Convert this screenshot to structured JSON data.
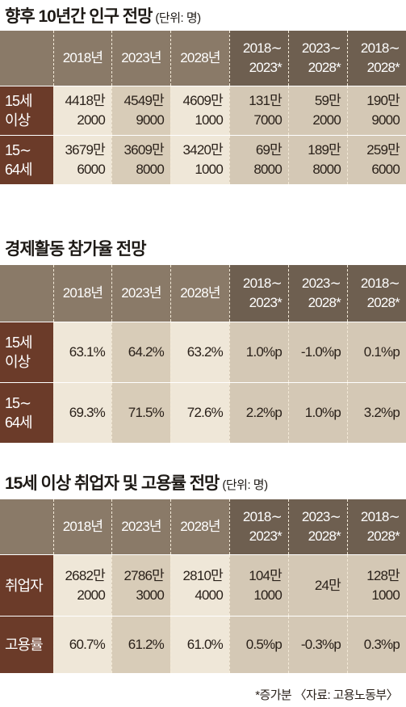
{
  "section1": {
    "title": "향후 10년간 인구 전망",
    "unit": "(단위: 명)",
    "headers": [
      {
        "l1": "",
        "l2": ""
      },
      {
        "l1": "2018년",
        "l2": ""
      },
      {
        "l1": "2023년",
        "l2": ""
      },
      {
        "l1": "2028년",
        "l2": ""
      },
      {
        "l1": "2018∼",
        "l2": "2023*"
      },
      {
        "l1": "2023∼",
        "l2": "2028*"
      },
      {
        "l1": "2018∼",
        "l2": "2028*"
      }
    ],
    "rows": [
      {
        "label1": "15세",
        "label2": "이상",
        "cells": [
          [
            "4418만",
            "2000"
          ],
          [
            "4549만",
            "9000"
          ],
          [
            "4609만",
            "1000"
          ],
          [
            "131만",
            "7000"
          ],
          [
            "59만",
            "2000"
          ],
          [
            "190만",
            "9000"
          ]
        ]
      },
      {
        "label1": "15∼",
        "label2": "64세",
        "cells": [
          [
            "3679만",
            "6000"
          ],
          [
            "3609만",
            "8000"
          ],
          [
            "3420만",
            "1000"
          ],
          [
            "69만",
            "8000"
          ],
          [
            "189만",
            "8000"
          ],
          [
            "259만",
            "6000"
          ]
        ]
      }
    ]
  },
  "section2": {
    "title": "경제활동 참가율 전망",
    "unit": "",
    "headers": [
      {
        "l1": "",
        "l2": ""
      },
      {
        "l1": "2018년",
        "l2": ""
      },
      {
        "l1": "2023년",
        "l2": ""
      },
      {
        "l1": "2028년",
        "l2": ""
      },
      {
        "l1": "2018∼",
        "l2": "2023*"
      },
      {
        "l1": "2023∼",
        "l2": "2028*"
      },
      {
        "l1": "2018∼",
        "l2": "2028*"
      }
    ],
    "rows": [
      {
        "label1": "15세",
        "label2": "이상",
        "cells": [
          [
            "63.1%",
            ""
          ],
          [
            "64.2%",
            ""
          ],
          [
            "63.2%",
            ""
          ],
          [
            "1.0%p",
            ""
          ],
          [
            "-1.0%p",
            ""
          ],
          [
            "0.1%p",
            ""
          ]
        ]
      },
      {
        "label1": "15∼",
        "label2": "64세",
        "cells": [
          [
            "69.3%",
            ""
          ],
          [
            "71.5%",
            ""
          ],
          [
            "72.6%",
            ""
          ],
          [
            "2.2%p",
            ""
          ],
          [
            "1.0%p",
            ""
          ],
          [
            "3.2%p",
            ""
          ]
        ]
      }
    ]
  },
  "section3": {
    "title": "15세 이상 취업자 및 고용률 전망",
    "unit": "(단위: 명)",
    "headers": [
      {
        "l1": "",
        "l2": ""
      },
      {
        "l1": "2018년",
        "l2": ""
      },
      {
        "l1": "2023년",
        "l2": ""
      },
      {
        "l1": "2028년",
        "l2": ""
      },
      {
        "l1": "2018∼",
        "l2": "2023*"
      },
      {
        "l1": "2023∼",
        "l2": "2028*"
      },
      {
        "l1": "2018∼",
        "l2": "2028*"
      }
    ],
    "rows": [
      {
        "label1": "취업자",
        "label2": "",
        "cells": [
          [
            "2682만",
            "2000"
          ],
          [
            "2786만",
            "3000"
          ],
          [
            "2810만",
            "4000"
          ],
          [
            "104만",
            "1000"
          ],
          [
            "24만",
            ""
          ],
          [
            "128만",
            "1000"
          ]
        ]
      },
      {
        "label1": "고용률",
        "label2": "",
        "cells": [
          [
            "60.7%",
            ""
          ],
          [
            "61.2%",
            ""
          ],
          [
            "61.0%",
            ""
          ],
          [
            "0.5%p",
            ""
          ],
          [
            "-0.3%p",
            ""
          ],
          [
            "0.3%p",
            ""
          ]
        ]
      }
    ]
  },
  "footer": "*증가분 〈자료: 고용노동부〉"
}
